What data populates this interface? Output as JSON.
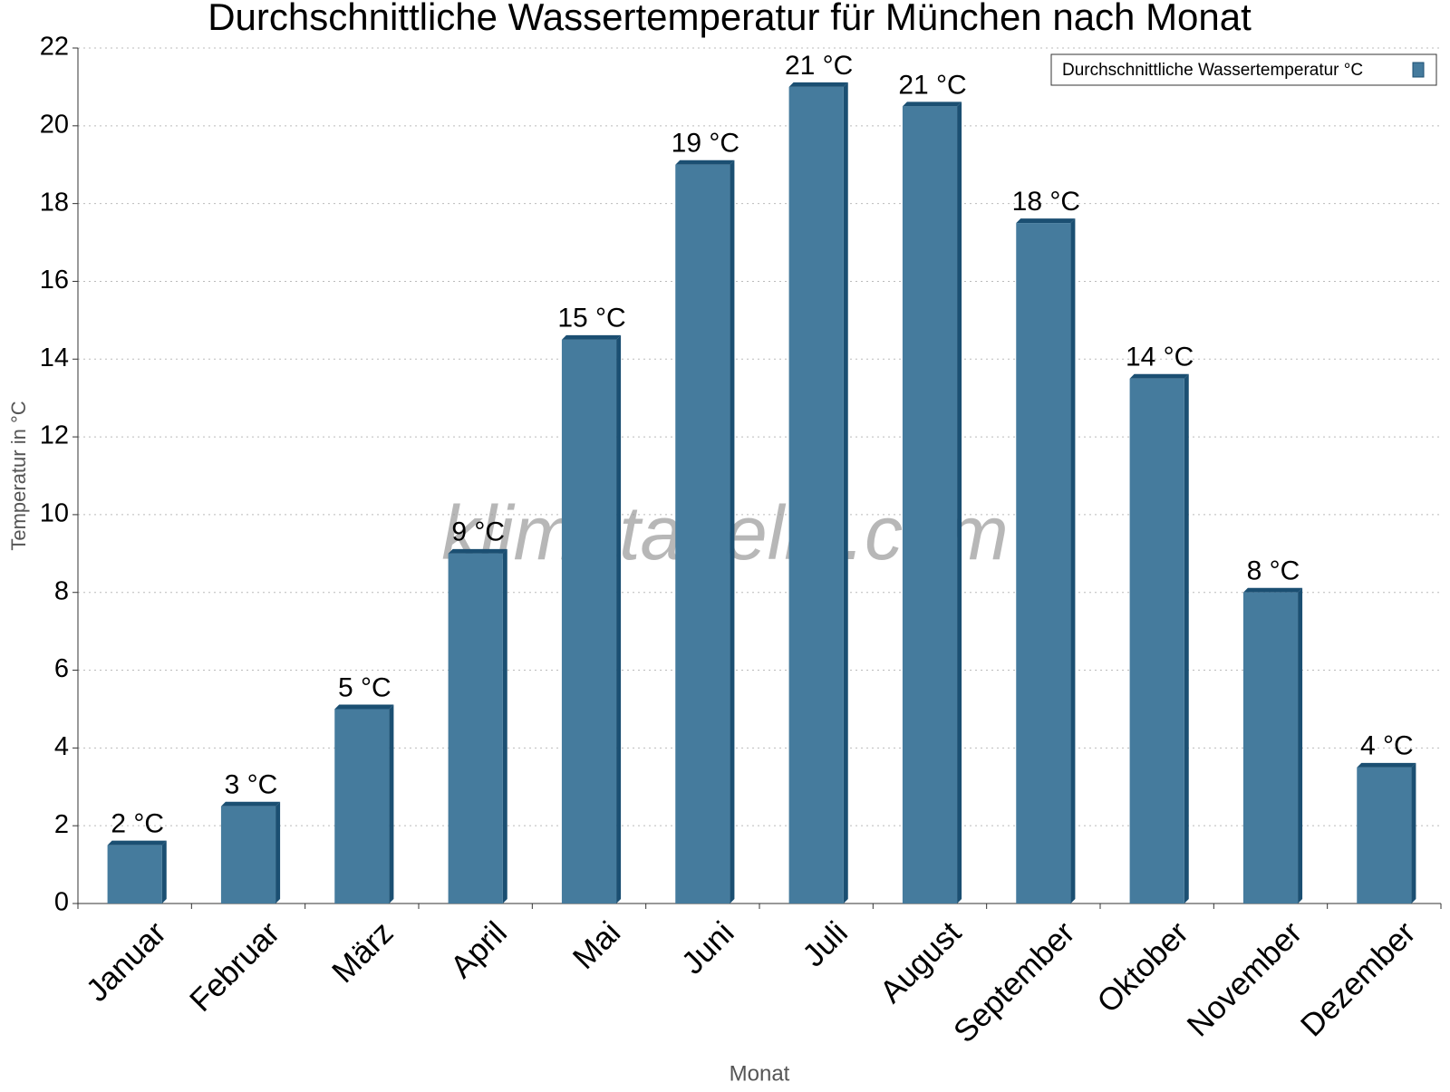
{
  "chart_data": {
    "type": "bar",
    "title": "Durchschnittliche Wassertemperatur für München nach Monat",
    "watermark": "klimatabelle.com",
    "x_label": "Monat",
    "y_label": "Temperatur in °C",
    "categories": [
      "Januar",
      "Februar",
      "März",
      "April",
      "Mai",
      "Juni",
      "Juli",
      "August",
      "September",
      "Oktober",
      "November",
      "Dezember"
    ],
    "series": [
      {
        "name": "Durchschnittliche Wassertemperatur °C",
        "color": "#457b9d",
        "values": [
          1.5,
          2.5,
          5,
          9,
          14.5,
          19,
          21,
          20.5,
          17.5,
          13.5,
          8,
          3.5
        ],
        "value_labels": [
          "2 °C",
          "3 °C",
          "5 °C",
          "9 °C",
          "15 °C",
          "19 °C",
          "21 °C",
          "21 °C",
          "18 °C",
          "14 °C",
          "8 °C",
          "4 °C"
        ]
      }
    ],
    "ylim": [
      0,
      22
    ],
    "yticks": [
      0,
      2,
      4,
      6,
      8,
      10,
      12,
      14,
      16,
      18,
      20,
      22
    ],
    "grid": true,
    "legend": "top-right"
  }
}
